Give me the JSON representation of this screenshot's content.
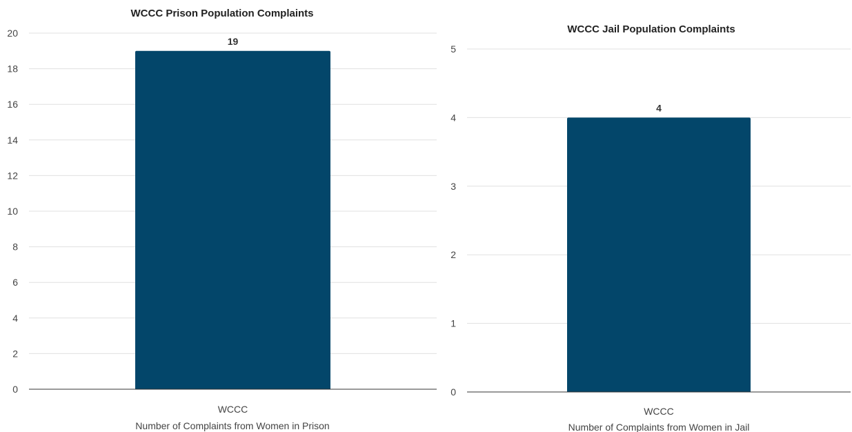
{
  "chart_data": [
    {
      "type": "bar",
      "title": "WCCC Prison Population Complaints",
      "categories": [
        "WCCC"
      ],
      "values": [
        19
      ],
      "xlabel": "Number of Complaints from Women in Prison",
      "ylabel": "",
      "ylim": [
        0,
        20
      ],
      "yticks": [
        0,
        2,
        4,
        6,
        8,
        10,
        12,
        14,
        16,
        18,
        20
      ],
      "data_labels": [
        "19"
      ],
      "grid": true,
      "legend": "none",
      "bar_color": "#03466a"
    },
    {
      "type": "bar",
      "title": "WCCC Jail Population Complaints",
      "categories": [
        "WCCC"
      ],
      "values": [
        4
      ],
      "xlabel": "Number of Complaints from Women in Jail",
      "ylabel": "",
      "ylim": [
        0,
        5
      ],
      "yticks": [
        0,
        1,
        2,
        3,
        4,
        5
      ],
      "data_labels": [
        "4"
      ],
      "grid": true,
      "legend": "none",
      "bar_color": "#03466a"
    }
  ]
}
